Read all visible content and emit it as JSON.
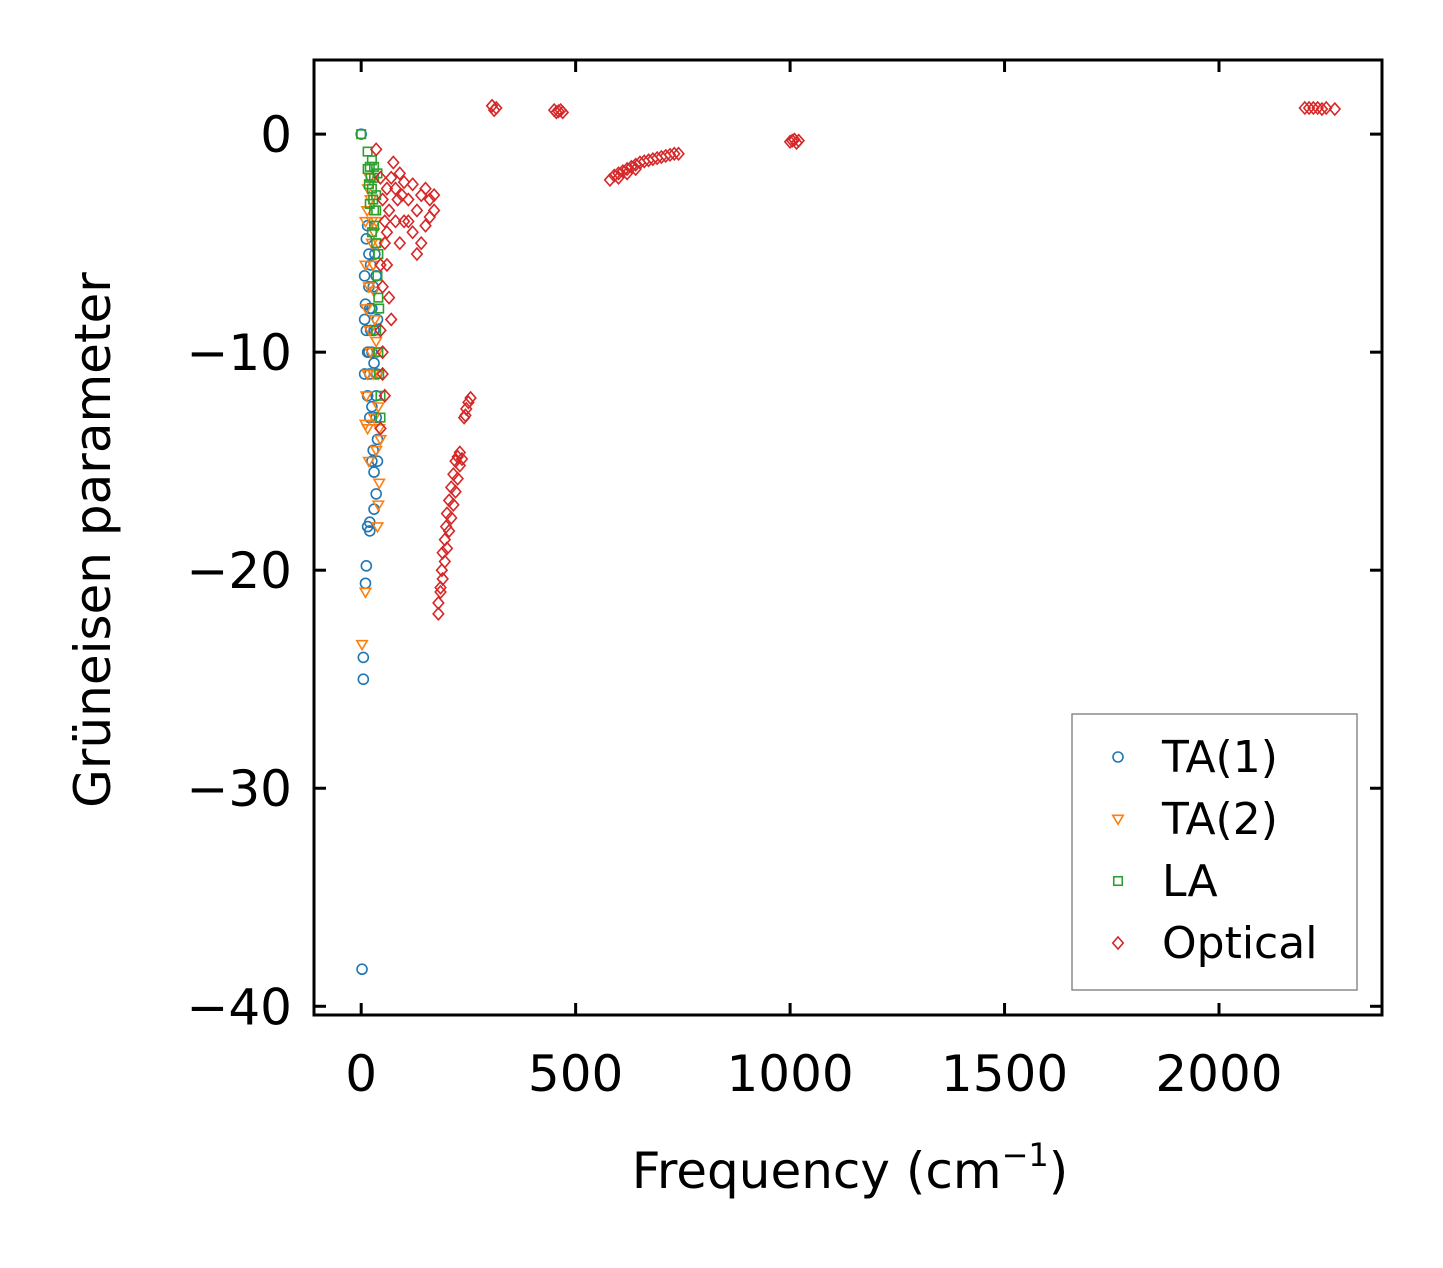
{
  "chart_data": {
    "type": "scatter",
    "title": "",
    "xlabel": "Frequency (cm",
    "xlabel_sup": "−1",
    "xlabel_close": ")",
    "ylabel": "Grüneisen parameter",
    "xlim": [
      -110,
      2380
    ],
    "ylim": [
      -40.4,
      3.4
    ],
    "xticks": [
      0,
      500,
      1000,
      1500,
      2000
    ],
    "xtick_labels": [
      "0",
      "500",
      "1000",
      "1500",
      "2000"
    ],
    "yticks": [
      0,
      -10,
      -20,
      -30,
      -40
    ],
    "ytick_labels": [
      "0",
      "−10",
      "−20",
      "−30",
      "−40"
    ],
    "grid": false,
    "legend_position": "lower-right",
    "colors": {
      "TA(1)": "#1f77b4",
      "TA(2)": "#ff7f0e",
      "LA": "#2ca02c",
      "Optical": "#d62728"
    },
    "series": [
      {
        "name": "TA(1)",
        "marker": "circle",
        "points": [
          [
            0,
            0
          ],
          [
            2,
            -38.3
          ],
          [
            5,
            -25
          ],
          [
            5,
            -24
          ],
          [
            10,
            -20.6
          ],
          [
            12,
            -19.8
          ],
          [
            15,
            -18
          ],
          [
            20,
            -18.2
          ],
          [
            20,
            -17.8
          ],
          [
            8,
            -11
          ],
          [
            8,
            -8.5
          ],
          [
            8,
            -6.5
          ],
          [
            10,
            -7.8
          ],
          [
            12,
            -4.8
          ],
          [
            15,
            -4.2
          ],
          [
            18,
            -5.5
          ],
          [
            22,
            -6
          ],
          [
            25,
            -8
          ],
          [
            30,
            -9
          ],
          [
            30,
            -10.5
          ],
          [
            35,
            -12
          ],
          [
            35,
            -13
          ],
          [
            28,
            -14.5
          ],
          [
            30,
            -15.5
          ],
          [
            35,
            -16.5
          ],
          [
            30,
            -17.2
          ],
          [
            25,
            -12.5
          ],
          [
            25,
            -10
          ],
          [
            22,
            -9
          ],
          [
            20,
            -8
          ],
          [
            18,
            -7
          ],
          [
            28,
            -7
          ],
          [
            32,
            -5.5
          ],
          [
            35,
            -6.5
          ],
          [
            38,
            -8.5
          ],
          [
            36,
            -11
          ],
          [
            38,
            -14
          ],
          [
            38,
            -15
          ],
          [
            20,
            -11
          ],
          [
            20,
            -13
          ],
          [
            25,
            -15
          ],
          [
            15,
            -12
          ],
          [
            15,
            -10
          ],
          [
            12,
            -9
          ],
          [
            18,
            -10
          ]
        ]
      },
      {
        "name": "TA(2)",
        "marker": "triangle-down",
        "points": [
          [
            2,
            -23.4
          ],
          [
            10,
            -21
          ],
          [
            10,
            -13.3
          ],
          [
            12,
            -12
          ],
          [
            15,
            -11
          ],
          [
            12,
            -8
          ],
          [
            10,
            -6
          ],
          [
            10,
            -4
          ],
          [
            14,
            -3.5
          ],
          [
            16,
            -2.5
          ],
          [
            20,
            -2
          ],
          [
            22,
            -3
          ],
          [
            25,
            -4
          ],
          [
            25,
            -5
          ],
          [
            28,
            -6
          ],
          [
            30,
            -7.2
          ],
          [
            32,
            -8.5
          ],
          [
            35,
            -9.5
          ],
          [
            38,
            -10
          ],
          [
            40,
            -11
          ],
          [
            40,
            -12.5
          ],
          [
            42,
            -13.5
          ],
          [
            45,
            -14
          ],
          [
            42,
            -16
          ],
          [
            40,
            -17
          ],
          [
            38,
            -18
          ],
          [
            35,
            -14.5
          ],
          [
            30,
            -13
          ],
          [
            28,
            -11
          ],
          [
            22,
            -10
          ],
          [
            20,
            -9
          ],
          [
            18,
            -7
          ],
          [
            30,
            -4.5
          ],
          [
            35,
            -4
          ],
          [
            40,
            -5
          ],
          [
            15,
            -13.5
          ],
          [
            18,
            -15
          ]
        ]
      },
      {
        "name": "LA",
        "marker": "square",
        "points": [
          [
            0,
            0
          ],
          [
            15,
            -0.8
          ],
          [
            15,
            -1.6
          ],
          [
            18,
            -2.3
          ],
          [
            20,
            -1.5
          ],
          [
            22,
            -2
          ],
          [
            25,
            -2.5
          ],
          [
            28,
            -3
          ],
          [
            30,
            -3.5
          ],
          [
            25,
            -1.2
          ],
          [
            30,
            -2
          ],
          [
            35,
            -2.8
          ],
          [
            20,
            -3.2
          ],
          [
            30,
            -4.2
          ],
          [
            35,
            -5
          ],
          [
            40,
            -5.5
          ],
          [
            38,
            -6.5
          ],
          [
            40,
            -7.5
          ],
          [
            42,
            -8
          ],
          [
            35,
            -9
          ],
          [
            40,
            -10
          ],
          [
            42,
            -11
          ],
          [
            45,
            -12
          ],
          [
            45,
            -13
          ],
          [
            30,
            -1.5
          ],
          [
            35,
            -3.5
          ],
          [
            25,
            -4.5
          ],
          [
            38,
            -1.8
          ]
        ]
      },
      {
        "name": "Optical",
        "marker": "diamond",
        "points": [
          [
            35,
            -0.7
          ],
          [
            45,
            -2
          ],
          [
            50,
            -3
          ],
          [
            55,
            -4
          ],
          [
            60,
            -2.5
          ],
          [
            65,
            -3.5
          ],
          [
            70,
            -2
          ],
          [
            75,
            -1.3
          ],
          [
            80,
            -2.5
          ],
          [
            85,
            -3
          ],
          [
            90,
            -1.8
          ],
          [
            95,
            -2.8
          ],
          [
            100,
            -2.2
          ],
          [
            110,
            -3
          ],
          [
            120,
            -2.3
          ],
          [
            130,
            -3.5
          ],
          [
            140,
            -2.8
          ],
          [
            150,
            -2.5
          ],
          [
            160,
            -3
          ],
          [
            170,
            -2.8
          ],
          [
            55,
            -5
          ],
          [
            60,
            -6
          ],
          [
            65,
            -7.5
          ],
          [
            70,
            -8.5
          ],
          [
            45,
            -9
          ],
          [
            50,
            -10
          ],
          [
            50,
            -11
          ],
          [
            55,
            -12
          ],
          [
            45,
            -13.5
          ],
          [
            50,
            -7
          ],
          [
            45,
            -6
          ],
          [
            100,
            -4
          ],
          [
            120,
            -4.5
          ],
          [
            130,
            -5.5
          ],
          [
            140,
            -5
          ],
          [
            150,
            -4.2
          ],
          [
            160,
            -3.8
          ],
          [
            80,
            -4
          ],
          [
            90,
            -5
          ],
          [
            60,
            -4.5
          ],
          [
            170,
            -3.5
          ],
          [
            110,
            -4
          ],
          [
            180,
            -22
          ],
          [
            180,
            -21.5
          ],
          [
            185,
            -20.8
          ],
          [
            188,
            -20
          ],
          [
            190,
            -19.2
          ],
          [
            195,
            -18.6
          ],
          [
            198,
            -18
          ],
          [
            200,
            -17.4
          ],
          [
            205,
            -16.8
          ],
          [
            210,
            -16.2
          ],
          [
            215,
            -15.6
          ],
          [
            220,
            -15
          ],
          [
            225,
            -14.8
          ],
          [
            230,
            -14.6
          ],
          [
            185,
            -21
          ],
          [
            190,
            -20.4
          ],
          [
            195,
            -19.6
          ],
          [
            200,
            -19
          ],
          [
            205,
            -18.2
          ],
          [
            210,
            -17.6
          ],
          [
            215,
            -17
          ],
          [
            220,
            -16.4
          ],
          [
            225,
            -15.8
          ],
          [
            230,
            -15.2
          ],
          [
            235,
            -14.9
          ],
          [
            240,
            -13
          ],
          [
            245,
            -12.6
          ],
          [
            250,
            -12.3
          ],
          [
            255,
            -12.1
          ],
          [
            243,
            -12.9
          ],
          [
            305,
            1.3
          ],
          [
            310,
            1.1
          ],
          [
            315,
            1.2
          ],
          [
            450,
            1.1
          ],
          [
            455,
            1
          ],
          [
            460,
            1.05
          ],
          [
            465,
            1.1
          ],
          [
            470,
            1
          ],
          [
            580,
            -2.1
          ],
          [
            590,
            -1.9
          ],
          [
            600,
            -1.8
          ],
          [
            610,
            -1.7
          ],
          [
            620,
            -1.6
          ],
          [
            630,
            -1.5
          ],
          [
            640,
            -1.4
          ],
          [
            650,
            -1.3
          ],
          [
            660,
            -1.25
          ],
          [
            670,
            -1.2
          ],
          [
            680,
            -1.15
          ],
          [
            690,
            -1.1
          ],
          [
            700,
            -1.05
          ],
          [
            710,
            -1
          ],
          [
            720,
            -0.95
          ],
          [
            730,
            -0.9
          ],
          [
            740,
            -0.9
          ],
          [
            600,
            -2
          ],
          [
            620,
            -1.8
          ],
          [
            640,
            -1.6
          ],
          [
            1000,
            -0.35
          ],
          [
            1005,
            -0.3
          ],
          [
            1010,
            -0.25
          ],
          [
            1015,
            -0.4
          ],
          [
            1020,
            -0.3
          ],
          [
            2200,
            1.2
          ],
          [
            2210,
            1.2
          ],
          [
            2220,
            1.2
          ],
          [
            2230,
            1.2
          ],
          [
            2240,
            1.15
          ],
          [
            2250,
            1.2
          ],
          [
            2270,
            1.15
          ]
        ]
      }
    ]
  }
}
